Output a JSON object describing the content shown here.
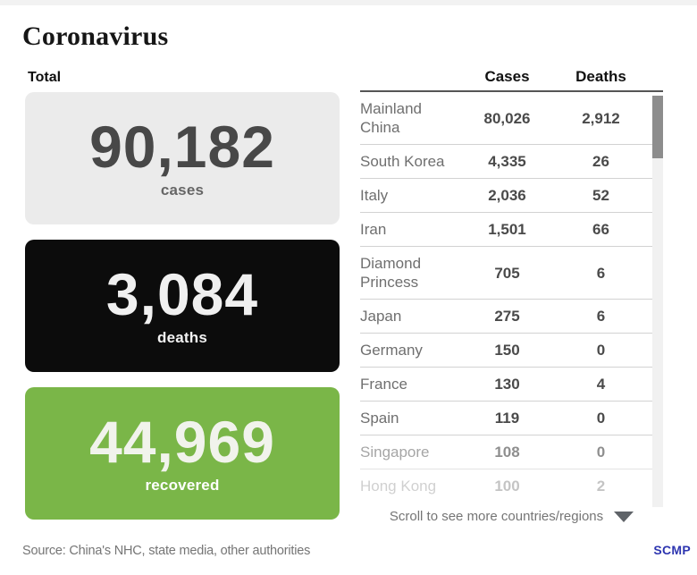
{
  "page": {
    "title": "Coronavirus",
    "total_label": "Total",
    "source": "Source: China's NHC, state media, other authorities",
    "brand": "SCMP"
  },
  "stats": [
    {
      "value": "90,182",
      "label": "cases",
      "bg": "#ebebeb",
      "fg": "#484848",
      "label_color": "#666666"
    },
    {
      "value": "3,084",
      "label": "deaths",
      "bg": "#0c0c0c",
      "fg": "#f0f0f0",
      "label_color": "#f2f2f2"
    },
    {
      "value": "44,969",
      "label": "recovered",
      "bg": "#7ab648",
      "fg": "#f1f3ec",
      "label_color": "#ffffff"
    }
  ],
  "table": {
    "columns": [
      "Cases",
      "Deaths"
    ],
    "rows": [
      {
        "region": "Mainland China",
        "cases": "80,026",
        "deaths": "2,912"
      },
      {
        "region": "South Korea",
        "cases": "4,335",
        "deaths": "26"
      },
      {
        "region": "Italy",
        "cases": "2,036",
        "deaths": "52"
      },
      {
        "region": "Iran",
        "cases": "1,501",
        "deaths": "66"
      },
      {
        "region": "Diamond Princess",
        "cases": "705",
        "deaths": "6"
      },
      {
        "region": "Japan",
        "cases": "275",
        "deaths": "6"
      },
      {
        "region": "Germany",
        "cases": "150",
        "deaths": "0"
      },
      {
        "region": "France",
        "cases": "130",
        "deaths": "4"
      },
      {
        "region": "Spain",
        "cases": "119",
        "deaths": "0"
      },
      {
        "region": "Singapore",
        "cases": "108",
        "deaths": "0",
        "fade": 0.62
      },
      {
        "region": "Hong Kong",
        "cases": "100",
        "deaths": "2",
        "fade": 0.32
      }
    ],
    "scroll_hint": "Scroll to see more countries/regions"
  },
  "chart_data": {
    "type": "table",
    "title": "Coronavirus",
    "totals": [
      {
        "label": "cases",
        "value": 90182
      },
      {
        "label": "deaths",
        "value": 3084
      },
      {
        "label": "recovered",
        "value": 44969
      }
    ],
    "columns": [
      "Region",
      "Cases",
      "Deaths"
    ],
    "rows": [
      [
        "Mainland China",
        80026,
        2912
      ],
      [
        "South Korea",
        4335,
        26
      ],
      [
        "Italy",
        2036,
        52
      ],
      [
        "Iran",
        1501,
        66
      ],
      [
        "Diamond Princess",
        705,
        6
      ],
      [
        "Japan",
        275,
        6
      ],
      [
        "Germany",
        150,
        0
      ],
      [
        "France",
        130,
        4
      ],
      [
        "Spain",
        119,
        0
      ],
      [
        "Singapore",
        108,
        0
      ],
      [
        "Hong Kong",
        100,
        2
      ]
    ],
    "note": "Scroll to see more countries/regions",
    "source": "China's NHC, state media, other authorities",
    "colors": {
      "cases_card": "#ebebeb",
      "deaths_card": "#0c0c0c",
      "recovered_card": "#7ab648",
      "brand_blue": "#2d35b0"
    }
  }
}
